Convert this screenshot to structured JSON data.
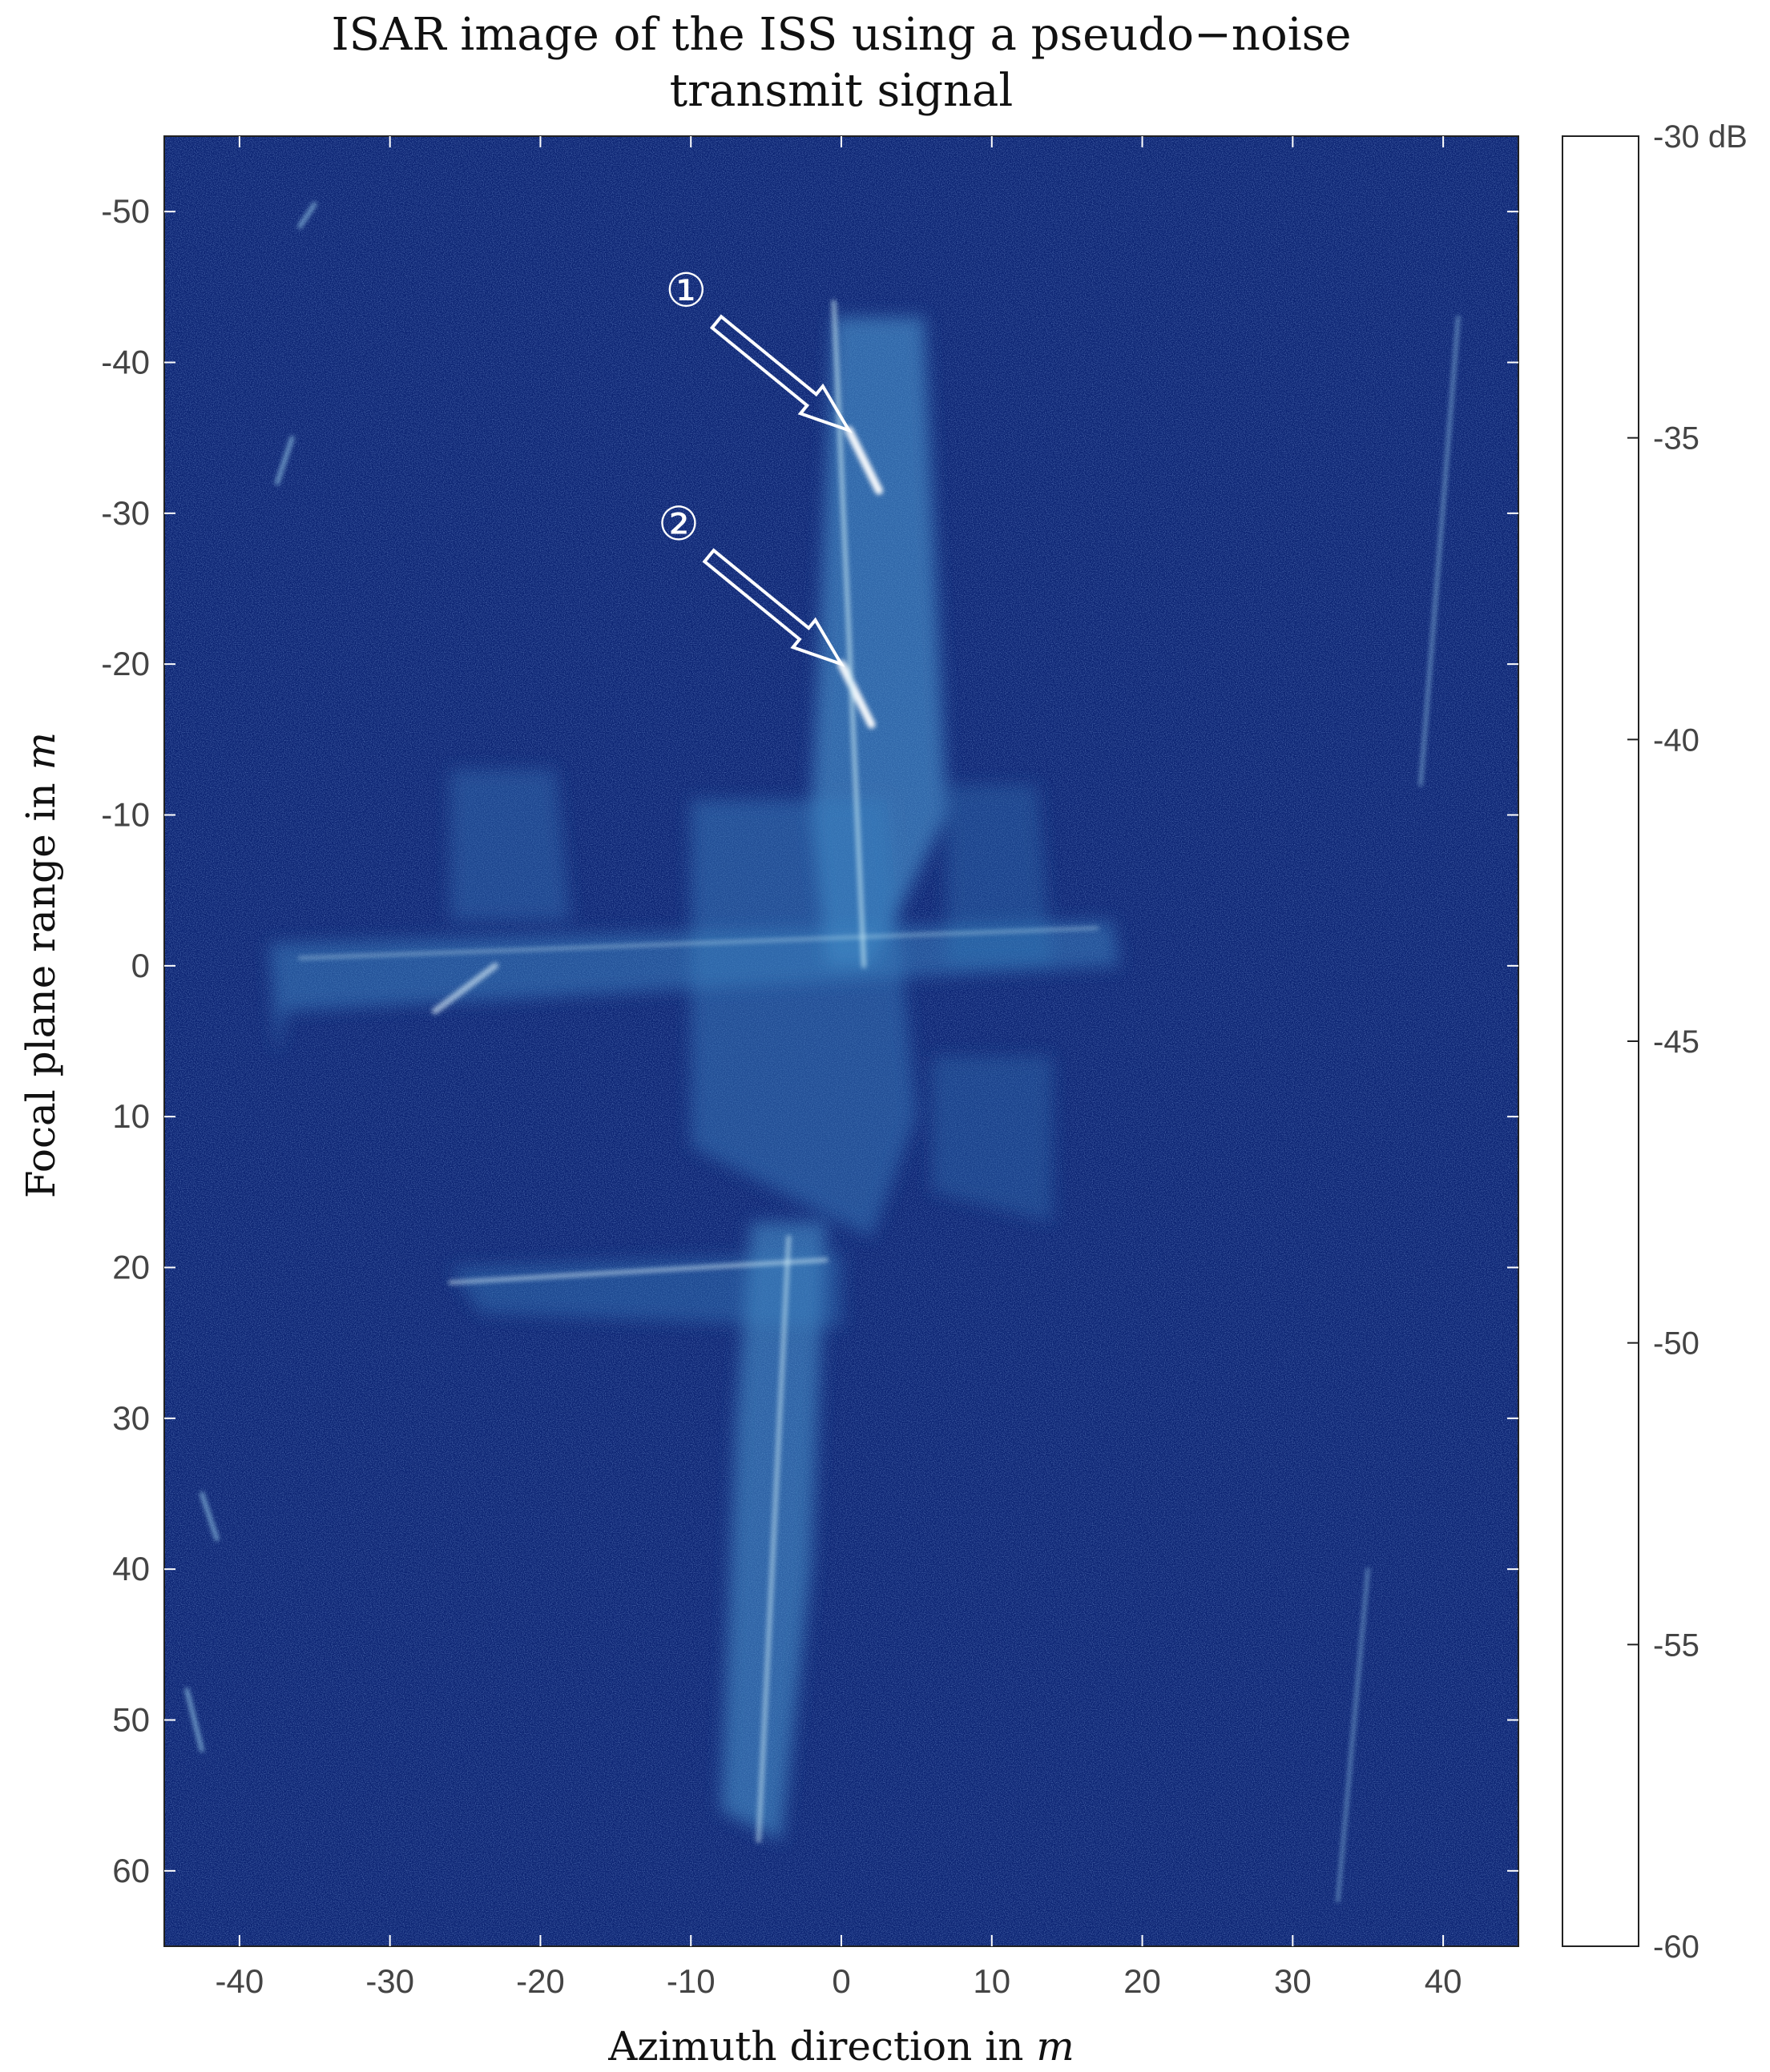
{
  "chart_data": {
    "type": "heatmap",
    "title_lines": [
      "ISAR image of the ISS using a pseudo−noise",
      "transmit signal"
    ],
    "xlabel": "Azimuth direction in",
    "xlabel_unit": "m",
    "ylabel": "Focal plane range in",
    "ylabel_unit": "m",
    "xlim": [
      -45,
      45
    ],
    "ylim": [
      -55,
      65
    ],
    "y_reversed": true,
    "xticks": [
      -40,
      -30,
      -20,
      -10,
      0,
      10,
      20,
      30,
      40
    ],
    "yticks": [
      -50,
      -40,
      -30,
      -20,
      -10,
      0,
      10,
      20,
      30,
      40,
      50,
      60
    ],
    "colorbar": {
      "range": [
        -60,
        -30
      ],
      "ticks": [
        -30,
        -35,
        -40,
        -45,
        -50,
        -55,
        -60
      ],
      "tick_labels": [
        "-30 dB",
        "-35",
        "-40",
        "-45",
        "-50",
        "-55",
        "-60"
      ],
      "colors": [
        {
          "value": -30,
          "color": "#ffffff"
        },
        {
          "value": -35,
          "color": "#c2f2dc"
        },
        {
          "value": -41.5,
          "color": "#7ecdd0"
        },
        {
          "value": -41.6,
          "color": "#00cdd0"
        },
        {
          "value": -46,
          "color": "#0091bb"
        },
        {
          "value": -49.3,
          "color": "#0052b0"
        },
        {
          "value": -49.4,
          "color": "#00109c"
        },
        {
          "value": -55,
          "color": "#000b60"
        },
        {
          "value": -57,
          "color": "#000530"
        },
        {
          "value": -57.1,
          "color": "#000000"
        },
        {
          "value": -60,
          "color": "#000000"
        }
      ]
    },
    "background_color": "#0b2372",
    "annotations": [
      {
        "label": "①",
        "x": 0.5,
        "y": -35.5
      },
      {
        "label": "②",
        "x": 0,
        "y": -20
      }
    ]
  }
}
